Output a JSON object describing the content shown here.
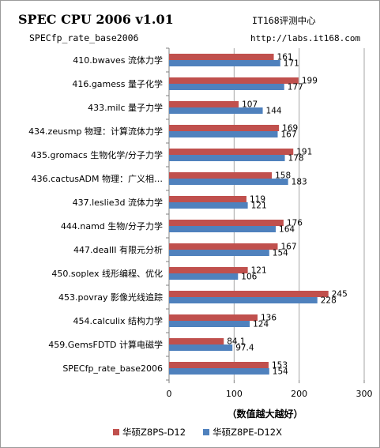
{
  "header": {
    "title": "SPEC CPU 2006 v1.01",
    "subtitle": "SPECfp_rate_base2006",
    "source_name": "IT168评测中心",
    "source_url": "http://labs.it168.com"
  },
  "chart_data": {
    "type": "bar",
    "orientation": "horizontal",
    "categories": [
      "410.bwaves 流体力学",
      "416.gamess 量子化学",
      "433.milc 量子力学",
      "434.zeusmp 物理：计算流体力学",
      "435.gromacs 生物化学/分子力学",
      "436.cactusADM 物理：广义相…",
      "437.leslie3d 流体力学",
      "444.namd 生物/分子力学",
      "447.dealII 有限元分析",
      "450.soplex 线形编程、优化",
      "453.povray 影像光线追踪",
      "454.calculix 结构力学",
      "459.GemsFDTD 计算电磁学",
      "SPECfp_rate_base2006"
    ],
    "series": [
      {
        "name": "华硕Z8PS-D12",
        "color": "#c0504d",
        "values": [
          161,
          199,
          107,
          169,
          191,
          158,
          119,
          176,
          167,
          121,
          245,
          136,
          84.1,
          153
        ],
        "labels": [
          "161",
          "199",
          "107",
          "169",
          "191",
          "158",
          "119",
          "176",
          "167",
          "121",
          "245",
          "136",
          "84.1",
          "153"
        ]
      },
      {
        "name": "华硕Z8PE-D12X",
        "color": "#4f81bd",
        "values": [
          171,
          177,
          144,
          167,
          178,
          183,
          121,
          164,
          154,
          106,
          228,
          124,
          97.4,
          154
        ],
        "labels": [
          "171",
          "177",
          "144",
          "167",
          "178",
          "183",
          "121",
          "164",
          "154",
          "106",
          "228",
          "124",
          "97.4",
          "154"
        ]
      }
    ],
    "xlim": [
      0,
      300
    ],
    "xticks": [
      "0",
      "100",
      "200",
      "300"
    ],
    "xlabel": "（数值越大越好）",
    "grid": true,
    "legend_position": "bottom"
  }
}
